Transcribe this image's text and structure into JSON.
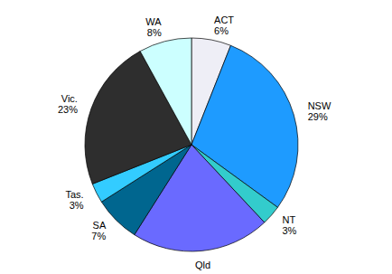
{
  "chart_data": {
    "type": "pie",
    "categories": [
      "ACT",
      "NSW",
      "NT",
      "Qld",
      "SA",
      "Tas.",
      "Vic.",
      "WA"
    ],
    "values": [
      6,
      29,
      3,
      21,
      7,
      3,
      23,
      8
    ],
    "value_labels": [
      "6%",
      "29%",
      "3%",
      null,
      "7%",
      "3%",
      "23%",
      "8%"
    ],
    "colors": [
      "#eeeef6",
      "#1e9bff",
      "#33cccc",
      "#6a6aff",
      "#00668f",
      "#33ccff",
      "#2e2e2e",
      "#ccffff"
    ],
    "data_labels": true
  }
}
